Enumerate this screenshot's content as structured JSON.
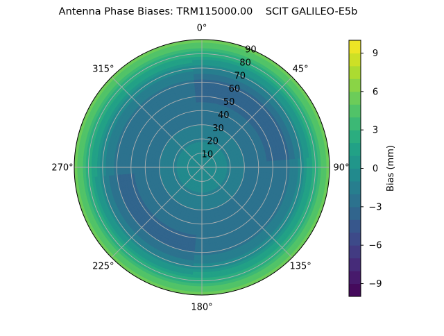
{
  "chart_data": {
    "type": "heatmap",
    "projection": "polar",
    "title": "Antenna Phase Biases: TRM115000.00    SCIT GALILEO-E5b",
    "angular_ticks": [
      "0°",
      "45°",
      "90°",
      "135°",
      "180°",
      "225°",
      "270°",
      "315°"
    ],
    "radial_ticks": [
      "10",
      "20",
      "30",
      "40",
      "50",
      "60",
      "70",
      "80",
      "90"
    ],
    "radial_range": [
      0,
      90
    ],
    "colorbar": {
      "label": "Bias (mm)",
      "range": [
        -10,
        10
      ],
      "ticks": [
        "−9",
        "−6",
        "−3",
        "0",
        "3",
        "6",
        "9"
      ],
      "tick_values": [
        -9,
        -6,
        -3,
        0,
        3,
        6,
        9
      ],
      "levels": 20,
      "colormap": "viridis"
    },
    "grid": true,
    "bias_profile": {
      "zenith": 0.0,
      "by_zenith_angle_deg": [
        [
          0,
          0.0
        ],
        [
          10,
          -0.3
        ],
        [
          20,
          -1.2
        ],
        [
          30,
          -2.0
        ],
        [
          40,
          -2.6
        ],
        [
          50,
          -2.8
        ],
        [
          60,
          -2.2
        ],
        [
          70,
          -0.5
        ],
        [
          80,
          2.5
        ],
        [
          90,
          6.0
        ]
      ],
      "notes": "azimuthal variation is small; slightly more negative patches near 40° and 225° azimuth at ~55-65° zenith"
    }
  }
}
